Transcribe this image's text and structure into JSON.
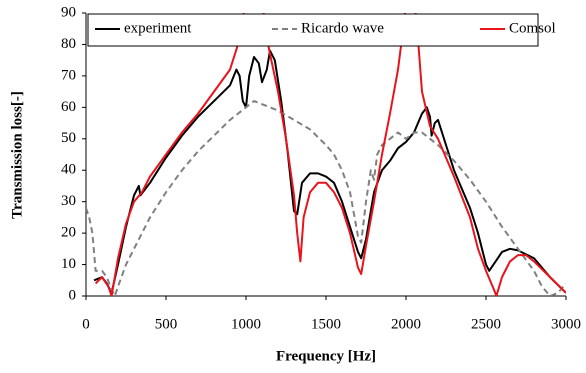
{
  "chart_data": {
    "type": "line",
    "xlabel": "Frequency [Hz]",
    "ylabel": "Transmission loss[-]",
    "xlim": [
      0,
      3000
    ],
    "xticks": [
      0,
      500,
      1000,
      1500,
      2000,
      2500,
      3000
    ],
    "ylim": [
      0,
      90
    ],
    "yticks": [
      0,
      10,
      20,
      30,
      40,
      50,
      60,
      70,
      80,
      90
    ],
    "grid": false,
    "legend": "top",
    "series": [
      {
        "name": "experiment",
        "color": "#000000",
        "dash": false,
        "x": [
          50,
          100,
          130,
          160,
          200,
          250,
          300,
          330,
          340,
          400,
          500,
          600,
          700,
          800,
          900,
          940,
          960,
          980,
          1000,
          1020,
          1050,
          1080,
          1100,
          1130,
          1150,
          1180,
          1220,
          1260,
          1300,
          1320,
          1350,
          1400,
          1450,
          1500,
          1550,
          1600,
          1650,
          1700,
          1720,
          1750,
          1800,
          1850,
          1900,
          1950,
          2000,
          2050,
          2100,
          2130,
          2150,
          2160,
          2180,
          2200,
          2250,
          2300,
          2400,
          2450,
          2500,
          2520,
          2560,
          2600,
          2650,
          2700,
          2800,
          2900,
          3000
        ],
        "values": [
          5,
          6,
          4,
          1,
          10,
          22,
          32,
          35,
          32,
          36,
          44,
          51,
          57,
          62,
          67,
          72,
          70,
          62,
          60,
          70,
          76,
          74,
          68,
          72,
          78,
          75,
          62,
          46,
          27,
          26,
          36,
          39,
          39,
          38,
          36,
          30,
          22,
          14,
          12,
          18,
          33,
          40,
          43,
          47,
          49,
          52,
          58,
          60,
          57,
          51,
          55,
          56,
          48,
          40,
          28,
          20,
          10,
          8,
          11,
          14,
          15,
          14.5,
          12,
          6,
          1
        ]
      },
      {
        "name": "Ricardo wave",
        "color": "#808080",
        "dash": true,
        "x": [
          0,
          20,
          40,
          60,
          100,
          130,
          160,
          180,
          200,
          250,
          300,
          400,
          500,
          600,
          700,
          800,
          900,
          1000,
          1050,
          1100,
          1150,
          1200,
          1300,
          1400,
          1500,
          1550,
          1600,
          1650,
          1700,
          1720,
          1750,
          1780,
          1800,
          1820,
          1850,
          1900,
          1950,
          2000,
          2050,
          2100,
          2200,
          2300,
          2400,
          2500,
          2600,
          2700,
          2800,
          2850,
          2900,
          2950,
          3000
        ],
        "values": [
          28,
          25,
          20,
          8,
          8,
          6,
          2,
          0,
          3,
          10,
          15,
          25,
          33,
          40,
          46,
          51,
          56,
          60,
          62,
          61,
          60,
          59,
          56,
          53,
          48,
          45,
          40,
          33,
          19,
          17,
          30,
          40,
          37,
          45,
          48,
          50,
          52,
          50,
          52,
          52,
          48,
          43,
          37,
          30,
          22,
          15,
          8,
          3,
          0,
          1,
          4
        ]
      },
      {
        "name": "Comsol",
        "color": "#e8141c",
        "dash": false,
        "x": [
          60,
          100,
          140,
          160,
          200,
          250,
          300,
          350,
          400,
          500,
          600,
          700,
          800,
          900,
          950,
          980,
          1000,
          1100,
          1120,
          1150,
          1200,
          1250,
          1300,
          1320,
          1340,
          1360,
          1400,
          1450,
          1500,
          1550,
          1600,
          1650,
          1700,
          1720,
          1750,
          1800,
          1850,
          1900,
          1950,
          1990,
          2000,
          2050,
          2070,
          2100,
          2150,
          2200,
          2300,
          2400,
          2450,
          2500,
          2550,
          2565,
          2600,
          2650,
          2700,
          2750,
          2800,
          2900,
          3000
        ],
        "values": [
          4,
          6,
          3,
          0,
          12,
          23,
          30,
          33,
          38,
          45,
          52,
          58,
          65,
          72,
          80,
          88,
          95,
          95,
          85,
          77,
          65,
          50,
          32,
          20,
          11,
          25,
          33,
          36,
          36,
          33,
          28,
          20,
          9,
          7,
          16,
          30,
          45,
          58,
          72,
          88,
          95,
          95,
          85,
          65,
          54,
          50,
          38,
          25,
          15,
          8,
          2,
          0,
          6,
          11,
          13,
          13,
          11,
          6,
          1
        ]
      }
    ]
  }
}
